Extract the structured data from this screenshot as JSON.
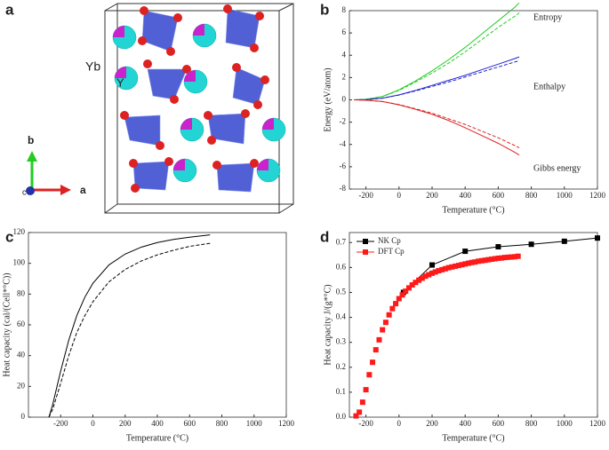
{
  "panel_labels": [
    "a",
    "b",
    "c",
    "d"
  ],
  "structure": {
    "labels": [
      "Yb",
      "Y"
    ],
    "axes": [
      "b",
      "a",
      "c"
    ]
  },
  "chart_data": [
    {
      "type": "line",
      "x": [
        -273,
        -200,
        -100,
        0,
        100,
        200,
        300,
        400,
        500,
        600,
        700,
        727
      ],
      "series": [
        {
          "color": "#22cc22",
          "dash": false,
          "values": [
            0,
            0.05,
            0.3,
            0.9,
            1.7,
            2.6,
            3.6,
            4.7,
            5.9,
            7.1,
            8.3,
            8.7
          ]
        },
        {
          "color": "#22cc22",
          "dash": true,
          "values": [
            0,
            0.05,
            0.3,
            0.85,
            1.6,
            2.4,
            3.3,
            4.3,
            5.4,
            6.5,
            7.5,
            7.8
          ]
        },
        {
          "color": "#2222cc",
          "dash": false,
          "values": [
            0,
            0.02,
            0.15,
            0.45,
            0.85,
            1.3,
            1.75,
            2.2,
            2.7,
            3.2,
            3.7,
            3.85
          ]
        },
        {
          "color": "#2222cc",
          "dash": true,
          "values": [
            0,
            0.02,
            0.15,
            0.43,
            0.8,
            1.2,
            1.6,
            2.05,
            2.5,
            2.95,
            3.4,
            3.5
          ]
        },
        {
          "color": "#dd2222",
          "dash": false,
          "values": [
            0,
            -0.03,
            -0.15,
            -0.45,
            -0.85,
            -1.3,
            -1.85,
            -2.5,
            -3.2,
            -3.9,
            -4.7,
            -4.95
          ]
        },
        {
          "color": "#dd2222",
          "dash": true,
          "values": [
            0,
            -0.03,
            -0.15,
            -0.42,
            -0.8,
            -1.2,
            -1.7,
            -2.2,
            -2.8,
            -3.4,
            -4.1,
            -4.3
          ]
        }
      ],
      "annotations": [
        {
          "text": "Entropy",
          "color": "#22cc22"
        },
        {
          "text": "Enthalpy",
          "color": "#2222cc"
        },
        {
          "text": "Gibbs energy",
          "color": "#dd2222"
        }
      ],
      "xlabel": "Temperature (°C)",
      "ylabel": "Energy (eV/atom)",
      "xlim": [
        -300,
        1200
      ],
      "xticks": [
        -200,
        0,
        200,
        400,
        600,
        800,
        1000,
        1200
      ],
      "ylim": [
        -8,
        8
      ],
      "yticks": [
        -8,
        -6,
        -4,
        -2,
        0,
        2,
        4,
        6,
        8
      ]
    },
    {
      "type": "line",
      "x": [
        -273,
        -250,
        -200,
        -150,
        -100,
        -50,
        0,
        100,
        200,
        300,
        400,
        500,
        600,
        727
      ],
      "series": [
        {
          "color": "#000000",
          "dash": false,
          "values": [
            0,
            8,
            30,
            50,
            66,
            78,
            87,
            99,
            106,
            110.5,
            113.5,
            115.5,
            117,
            118.5
          ]
        },
        {
          "color": "#000000",
          "dash": true,
          "values": [
            0,
            5,
            22,
            40,
            55,
            66,
            75,
            88,
            96,
            101.5,
            105.5,
            108.5,
            111,
            113
          ]
        }
      ],
      "xlabel": "Temperature (°C)",
      "ylabel": "Heat capacity (cal/(Cell*°C))",
      "xlim": [
        -400,
        1200
      ],
      "xticks": [
        -200,
        0,
        200,
        400,
        600,
        800,
        1000,
        1200
      ],
      "ylim": [
        0,
        120
      ],
      "yticks": [
        0,
        20,
        40,
        60,
        80,
        100,
        120
      ]
    },
    {
      "type": "line",
      "series": [
        {
          "name": "NK Cp",
          "color": "#000000",
          "marker": "square",
          "line": true,
          "x": [
            27,
            200,
            400,
            600,
            800,
            1000,
            1200
          ],
          "values": [
            0.5,
            0.61,
            0.665,
            0.683,
            0.693,
            0.705,
            0.718
          ]
        },
        {
          "name": "DFT Cp",
          "color": "#ff1a1a",
          "marker": "square",
          "line": false,
          "x": [
            -260,
            -240,
            -220,
            -200,
            -180,
            -160,
            -140,
            -120,
            -100,
            -80,
            -60,
            -40,
            -20,
            0,
            20,
            40,
            60,
            80,
            100,
            120,
            140,
            160,
            180,
            200,
            220,
            240,
            260,
            280,
            300,
            320,
            340,
            360,
            380,
            400,
            420,
            440,
            460,
            480,
            500,
            520,
            540,
            560,
            580,
            600,
            620,
            640,
            660,
            680,
            700,
            720
          ],
          "values": [
            0.005,
            0.02,
            0.06,
            0.11,
            0.17,
            0.22,
            0.27,
            0.31,
            0.35,
            0.38,
            0.41,
            0.435,
            0.455,
            0.475,
            0.49,
            0.505,
            0.518,
            0.53,
            0.54,
            0.549,
            0.557,
            0.565,
            0.571,
            0.577,
            0.582,
            0.587,
            0.591,
            0.595,
            0.599,
            0.602,
            0.605,
            0.608,
            0.611,
            0.614,
            0.617,
            0.62,
            0.622,
            0.625,
            0.627,
            0.629,
            0.631,
            0.633,
            0.635,
            0.637,
            0.638,
            0.64,
            0.641,
            0.642,
            0.643,
            0.645
          ]
        }
      ],
      "xlabel": "Temperature (°C)",
      "ylabel": "Heat capacity J/(g*°C)",
      "legend": "upper-left",
      "xlim": [
        -300,
        1200
      ],
      "xticks": [
        -200,
        0,
        200,
        400,
        600,
        800,
        1000,
        1200
      ],
      "ylim": [
        0,
        0.74
      ],
      "yticks": [
        {
          "value": 0,
          "label": "0.0"
        },
        0.1,
        0.2,
        0.3,
        0.4,
        0.5,
        0.6,
        0.7
      ]
    }
  ]
}
